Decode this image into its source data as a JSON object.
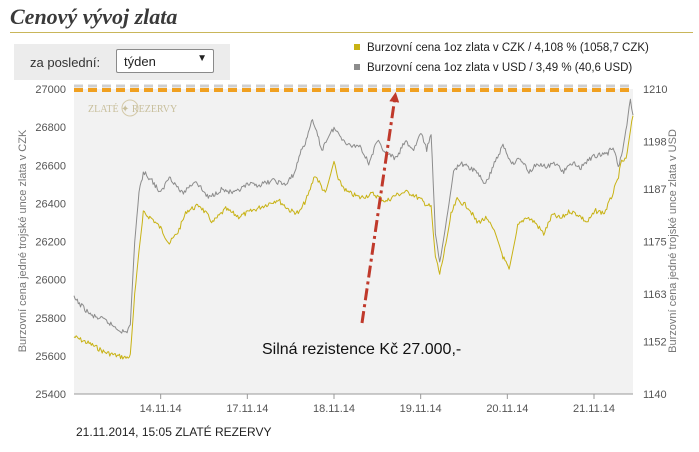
{
  "page": {
    "title": "Cenový vývoj zlata"
  },
  "period": {
    "label": "za poslední:",
    "selected": "týden"
  },
  "legend": {
    "items": [
      {
        "text": "Burzovní cena 1oz zlata v CZK / 4,108 % (1058,7 CZK)",
        "color": "#c8b214"
      },
      {
        "text": "Burzovní cena 1oz zlata v USD / 3,49 % (40,6 USD)",
        "color": "#8c8c8c"
      }
    ]
  },
  "footer": "21.11.2014, 15:05 ZLATÉ REZERVY",
  "watermark": "ZLATÉ ✦ REZERVY",
  "annotation": {
    "text": "Silná rezistence Kč 27.000,-",
    "color": "#c0392b"
  },
  "resistance": {
    "value": 27000,
    "color": "#f0a020"
  },
  "chart_data": {
    "type": "line",
    "x_tick_labels": [
      "14.11.14",
      "17.11.14",
      "18.11.14",
      "19.11.14",
      "20.11.14",
      "21.11.14"
    ],
    "x_tick_positions": [
      1,
      2,
      3,
      4,
      5,
      6
    ],
    "xlim": [
      0,
      6.45
    ],
    "ylabel_left": "Burzovní cena jedné trojské unce zlata v CZK",
    "ylabel_right": "Burzovní cena jedné trojské unce zlata v USD",
    "ylim_left": [
      25400,
      27000
    ],
    "yticks_left": [
      25400,
      25600,
      25800,
      26000,
      26200,
      26400,
      26600,
      26800,
      27000
    ],
    "ylim_right": [
      1140,
      1210
    ],
    "yticks_right": [
      1140,
      1152,
      1163,
      1175,
      1187,
      1198,
      1210
    ],
    "grid": false,
    "series": [
      {
        "name": "Burzovní cena 1oz zlata v CZK",
        "axis": "left",
        "color": "#c8b214",
        "points": [
          [
            0.0,
            25700
          ],
          [
            0.2,
            25660
          ],
          [
            0.35,
            25620
          ],
          [
            0.5,
            25600
          ],
          [
            0.6,
            25590
          ],
          [
            0.65,
            25600
          ],
          [
            0.7,
            25920
          ],
          [
            0.75,
            26150
          ],
          [
            0.8,
            26350
          ],
          [
            0.9,
            26320
          ],
          [
            1.0,
            26270
          ],
          [
            1.1,
            26190
          ],
          [
            1.2,
            26250
          ],
          [
            1.3,
            26360
          ],
          [
            1.45,
            26390
          ],
          [
            1.6,
            26300
          ],
          [
            1.75,
            26370
          ],
          [
            1.9,
            26330
          ],
          [
            2.05,
            26360
          ],
          [
            2.2,
            26390
          ],
          [
            2.35,
            26420
          ],
          [
            2.5,
            26360
          ],
          [
            2.6,
            26350
          ],
          [
            2.7,
            26440
          ],
          [
            2.78,
            26550
          ],
          [
            2.83,
            26510
          ],
          [
            2.9,
            26450
          ],
          [
            3.0,
            26620
          ],
          [
            3.05,
            26520
          ],
          [
            3.15,
            26460
          ],
          [
            3.3,
            26430
          ],
          [
            3.45,
            26450
          ],
          [
            3.6,
            26410
          ],
          [
            3.7,
            26440
          ],
          [
            3.82,
            26460
          ],
          [
            3.9,
            26450
          ],
          [
            4.0,
            26420
          ],
          [
            4.05,
            26400
          ],
          [
            4.12,
            26380
          ],
          [
            4.17,
            26120
          ],
          [
            4.22,
            26030
          ],
          [
            4.28,
            26160
          ],
          [
            4.35,
            26340
          ],
          [
            4.42,
            26420
          ],
          [
            4.55,
            26380
          ],
          [
            4.65,
            26300
          ],
          [
            4.75,
            26320
          ],
          [
            4.85,
            26260
          ],
          [
            4.95,
            26120
          ],
          [
            5.02,
            26050
          ],
          [
            5.12,
            26280
          ],
          [
            5.22,
            26330
          ],
          [
            5.32,
            26300
          ],
          [
            5.42,
            26240
          ],
          [
            5.52,
            26340
          ],
          [
            5.62,
            26320
          ],
          [
            5.72,
            26360
          ],
          [
            5.82,
            26340
          ],
          [
            5.92,
            26300
          ],
          [
            6.02,
            26360
          ],
          [
            6.12,
            26350
          ],
          [
            6.2,
            26430
          ],
          [
            6.27,
            26520
          ],
          [
            6.32,
            26620
          ],
          [
            6.37,
            26630
          ],
          [
            6.42,
            26780
          ],
          [
            6.45,
            26860
          ]
        ]
      },
      {
        "name": "Burzovní cena 1oz zlata v USD",
        "axis": "right",
        "color": "#8c8c8c",
        "points": [
          [
            0.0,
            1162
          ],
          [
            0.1,
            1160
          ],
          [
            0.2,
            1158
          ],
          [
            0.35,
            1157
          ],
          [
            0.5,
            1155
          ],
          [
            0.6,
            1154
          ],
          [
            0.65,
            1156
          ],
          [
            0.7,
            1175
          ],
          [
            0.75,
            1186
          ],
          [
            0.8,
            1191
          ],
          [
            0.9,
            1189
          ],
          [
            1.0,
            1186
          ],
          [
            1.1,
            1190
          ],
          [
            1.25,
            1186
          ],
          [
            1.4,
            1189
          ],
          [
            1.55,
            1185
          ],
          [
            1.7,
            1187
          ],
          [
            1.85,
            1186
          ],
          [
            2.0,
            1188
          ],
          [
            2.15,
            1188
          ],
          [
            2.3,
            1189
          ],
          [
            2.45,
            1188
          ],
          [
            2.55,
            1191
          ],
          [
            2.62,
            1196
          ],
          [
            2.68,
            1198
          ],
          [
            2.74,
            1203
          ],
          [
            2.8,
            1200
          ],
          [
            2.86,
            1196
          ],
          [
            2.93,
            1199
          ],
          [
            3.0,
            1201
          ],
          [
            3.08,
            1199
          ],
          [
            3.18,
            1197
          ],
          [
            3.3,
            1197
          ],
          [
            3.4,
            1193
          ],
          [
            3.5,
            1198
          ],
          [
            3.62,
            1195
          ],
          [
            3.72,
            1194
          ],
          [
            3.82,
            1198
          ],
          [
            3.92,
            1196
          ],
          [
            4.0,
            1200
          ],
          [
            4.07,
            1196
          ],
          [
            4.12,
            1200
          ],
          [
            4.17,
            1177
          ],
          [
            4.22,
            1170
          ],
          [
            4.3,
            1180
          ],
          [
            4.38,
            1191
          ],
          [
            4.45,
            1193
          ],
          [
            4.55,
            1192
          ],
          [
            4.65,
            1191
          ],
          [
            4.75,
            1188
          ],
          [
            4.85,
            1193
          ],
          [
            4.95,
            1197
          ],
          [
            5.05,
            1193
          ],
          [
            5.15,
            1194
          ],
          [
            5.25,
            1191
          ],
          [
            5.35,
            1193
          ],
          [
            5.45,
            1192
          ],
          [
            5.55,
            1193
          ],
          [
            5.65,
            1191
          ],
          [
            5.75,
            1193
          ],
          [
            5.85,
            1192
          ],
          [
            5.95,
            1194
          ],
          [
            6.05,
            1195
          ],
          [
            6.15,
            1195
          ],
          [
            6.22,
            1197
          ],
          [
            6.28,
            1192
          ],
          [
            6.33,
            1196
          ],
          [
            6.38,
            1202
          ],
          [
            6.42,
            1208
          ],
          [
            6.45,
            1204
          ]
        ]
      }
    ]
  }
}
